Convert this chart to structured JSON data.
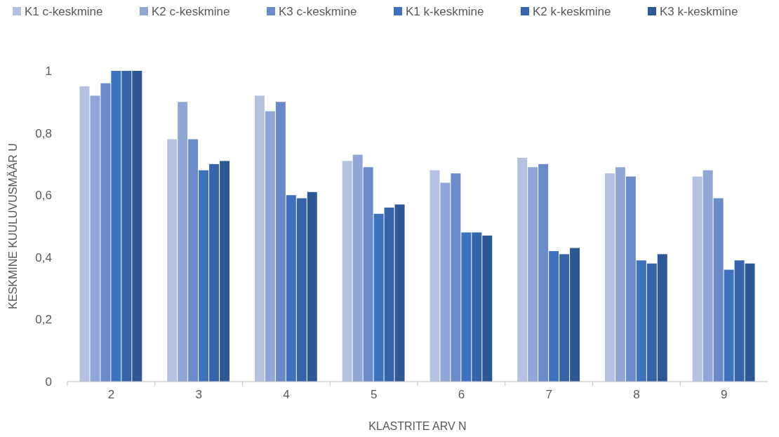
{
  "chart_data": {
    "type": "bar",
    "xlabel": "KLASTRITE ARV N",
    "ylabel": "KESKMINE KUULUVUSMÄÄR U",
    "categories": [
      "2",
      "3",
      "4",
      "5",
      "6",
      "7",
      "8",
      "9"
    ],
    "series": [
      {
        "name": "K1 c-keskmine",
        "color": "#b4c1e0",
        "values": [
          0.95,
          0.78,
          0.92,
          0.71,
          0.68,
          0.72,
          0.67,
          0.66
        ]
      },
      {
        "name": "K2 c-keskmine",
        "color": "#8fa6d6",
        "values": [
          0.92,
          0.9,
          0.87,
          0.73,
          0.64,
          0.69,
          0.69,
          0.68
        ]
      },
      {
        "name": "K3 c-keskmine",
        "color": "#6b8ac8",
        "values": [
          0.96,
          0.78,
          0.9,
          0.69,
          0.67,
          0.7,
          0.66,
          0.59
        ]
      },
      {
        "name": "K1 k-keskmine",
        "color": "#3d72bf",
        "values": [
          1,
          0.68,
          0.6,
          0.54,
          0.48,
          0.42,
          0.39,
          0.36
        ]
      },
      {
        "name": "K2 k-keskmine",
        "color": "#3564a8",
        "values": [
          1,
          0.7,
          0.59,
          0.56,
          0.48,
          0.41,
          0.38,
          0.39
        ]
      },
      {
        "name": "K3 k-keskmine",
        "color": "#2e5893",
        "values": [
          1,
          0.71,
          0.61,
          0.57,
          0.47,
          0.43,
          0.41,
          0.38
        ]
      }
    ],
    "ylim": [
      0,
      1
    ],
    "yticks": [
      0,
      {
        "value": 0.2,
        "label": "0,2"
      },
      {
        "value": 0.4,
        "label": "0,4"
      },
      {
        "value": 0.6,
        "label": "0,6"
      },
      {
        "value": 0.8,
        "label": "0,8"
      },
      1
    ],
    "grid": false,
    "legend": "top"
  }
}
